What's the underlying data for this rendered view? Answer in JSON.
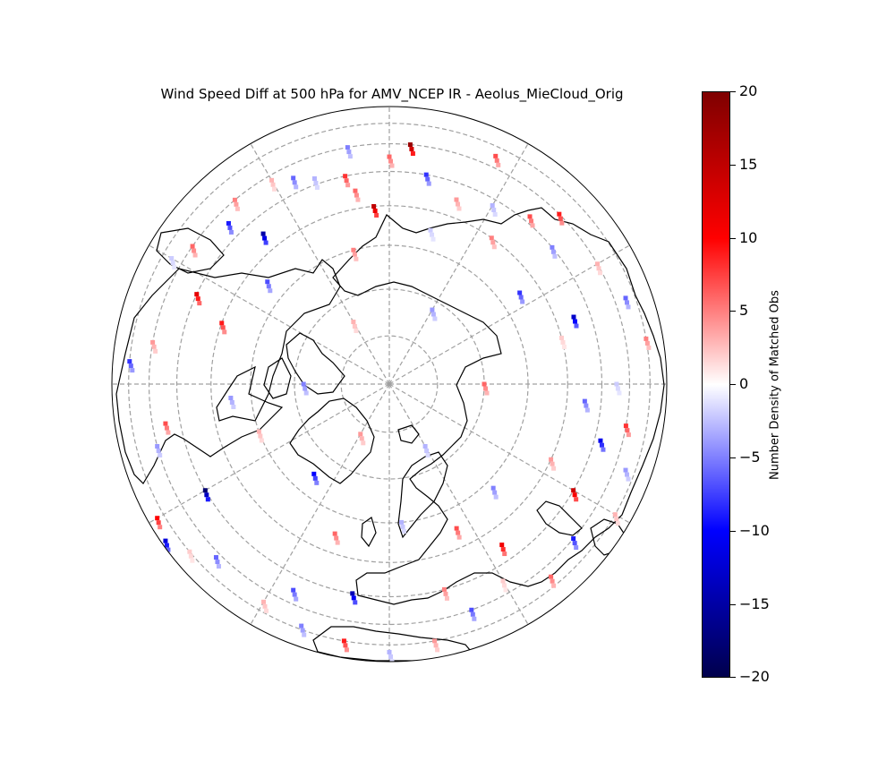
{
  "title": "Wind Speed Diff at 500 hPa for AMV_NCEP IR - Aeolus_MieCloud_Orig",
  "projection": "north-polar-orthographic",
  "colorbar": {
    "label": "Number Density of Matched Obs",
    "colormap": "seismic",
    "range": [
      -20,
      20
    ],
    "ticks": [
      "20",
      "15",
      "10",
      "5",
      "0",
      "−5",
      "−10",
      "−15",
      "−20"
    ],
    "colors": [
      "#00004c",
      "#0000ff",
      "#ffffff",
      "#ff0000",
      "#7f0000"
    ]
  },
  "gridlines": {
    "latitude_circles": [
      80,
      70,
      60,
      50,
      40,
      30,
      20
    ],
    "longitude_meridians_every_deg": 30,
    "color": "#a0a0a0",
    "style": "dashed"
  },
  "chart_data": {
    "type": "scatter",
    "value_field": "wind_speed_diff",
    "value_range": [
      -20,
      20
    ],
    "points_lon_lat_value": [
      [
        -170,
        45,
        6
      ],
      [
        -168,
        40,
        8
      ],
      [
        -160,
        38,
        -3
      ],
      [
        -155,
        35,
        -6
      ],
      [
        -150,
        32,
        3
      ],
      [
        -140,
        30,
        5
      ],
      [
        -120,
        25,
        -2
      ],
      [
        -100,
        30,
        4
      ],
      [
        -95,
        20,
        -8
      ],
      [
        -80,
        35,
        7
      ],
      [
        -75,
        30,
        -4
      ],
      [
        -60,
        15,
        10
      ],
      [
        -55,
        10,
        -12
      ],
      [
        -50,
        20,
        2
      ],
      [
        -45,
        28,
        -6
      ],
      [
        -30,
        25,
        3
      ],
      [
        -20,
        22,
        -5
      ],
      [
        -10,
        20,
        9
      ],
      [
        0,
        15,
        -3
      ],
      [
        10,
        20,
        4
      ],
      [
        20,
        30,
        -7
      ],
      [
        30,
        35,
        2
      ],
      [
        40,
        25,
        6
      ],
      [
        50,
        30,
        -9
      ],
      [
        60,
        20,
        3
      ],
      [
        70,
        25,
        -4
      ],
      [
        80,
        30,
        8
      ],
      [
        90,
        35,
        -2
      ],
      [
        100,
        20,
        5
      ],
      [
        110,
        25,
        -6
      ],
      [
        120,
        30,
        3
      ],
      [
        130,
        40,
        -5
      ],
      [
        140,
        38,
        7
      ],
      [
        150,
        42,
        -3
      ],
      [
        160,
        45,
        4
      ],
      [
        170,
        40,
        -8
      ],
      [
        180,
        35,
        6
      ],
      [
        -165,
        60,
        5
      ],
      [
        -130,
        55,
        -7
      ],
      [
        -110,
        50,
        9
      ],
      [
        -85,
        55,
        -4
      ],
      [
        -70,
        60,
        3
      ],
      [
        -40,
        65,
        -10
      ],
      [
        -20,
        55,
        6
      ],
      [
        5,
        60,
        -3
      ],
      [
        25,
        55,
        7
      ],
      [
        45,
        58,
        -5
      ],
      [
        65,
        50,
        4
      ],
      [
        85,
        45,
        -6
      ],
      [
        105,
        50,
        2
      ],
      [
        125,
        55,
        -8
      ],
      [
        145,
        50,
        5
      ],
      [
        165,
        55,
        -2
      ],
      [
        -150,
        75,
        3
      ],
      [
        -90,
        72,
        -5
      ],
      [
        -30,
        78,
        4
      ],
      [
        30,
        75,
        -3
      ],
      [
        90,
        70,
        6
      ],
      [
        150,
        72,
        -4
      ],
      [
        -175,
        50,
        15
      ],
      [
        -140,
        45,
        -15
      ],
      [
        -115,
        40,
        12
      ],
      [
        -10,
        40,
        -14
      ],
      [
        35,
        45,
        11
      ],
      [
        110,
        45,
        -13
      ],
      [
        175,
        30,
        18
      ],
      [
        -60,
        40,
        -18
      ],
      [
        60,
        40,
        14
      ],
      [
        -135,
        35,
        -9
      ],
      [
        -125,
        30,
        6
      ],
      [
        -25,
        35,
        -7
      ],
      [
        15,
        40,
        5
      ],
      [
        75,
        38,
        -11
      ],
      [
        135,
        30,
        9
      ],
      [
        -170,
        30,
        -5
      ],
      [
        155,
        25,
        7
      ]
    ]
  }
}
